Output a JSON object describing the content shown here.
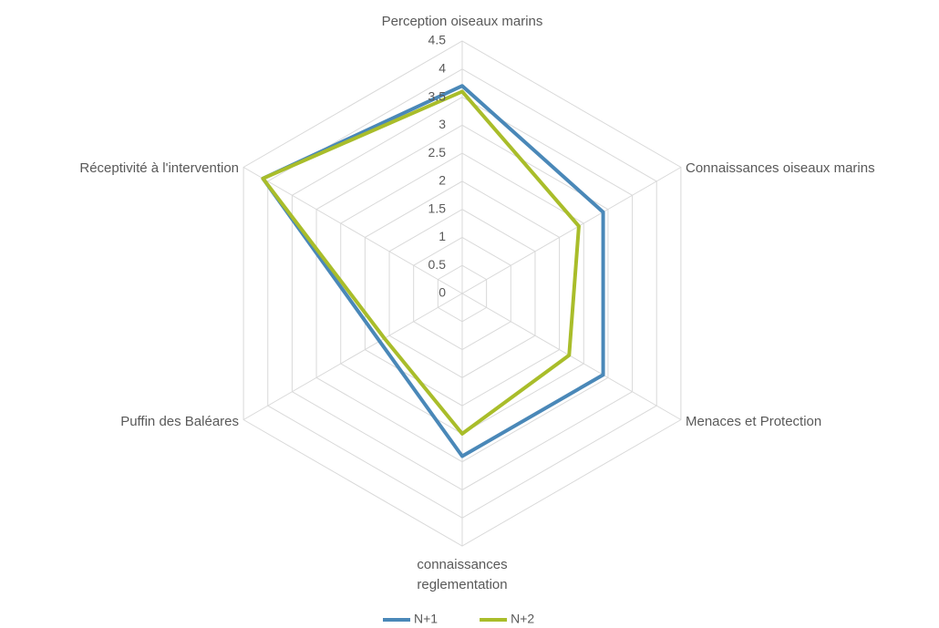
{
  "chart_data": {
    "type": "radar",
    "categories": [
      "Perception oiseaux marins",
      "Connaissances oiseaux marins",
      "Menaces et Protection",
      "connaissances reglementation",
      "Puffin des Baléares",
      "Réceptivité à l'intervention"
    ],
    "series": [
      {
        "name": "N+1",
        "color": "#4a88b8",
        "values": [
          3.7,
          2.9,
          2.9,
          2.9,
          1.7,
          4.1
        ]
      },
      {
        "name": "N+2",
        "color": "#a9bd2a",
        "values": [
          3.6,
          2.4,
          2.2,
          2.5,
          1.6,
          4.1
        ]
      }
    ],
    "ylim": [
      0,
      4.5
    ],
    "yticks": [
      0,
      0.5,
      1,
      1.5,
      2,
      2.5,
      3,
      3.5,
      4,
      4.5
    ],
    "grid": true,
    "legend": "bottom"
  }
}
